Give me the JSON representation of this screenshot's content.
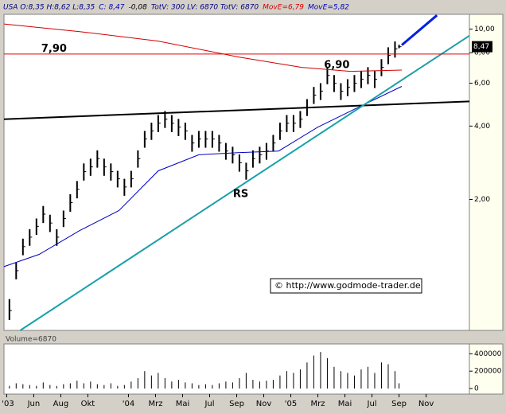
{
  "header": [
    {
      "text": "USA O:8,35 H:8,62 L:8,35",
      "color": "#000080"
    },
    {
      "text": "C: 8,47",
      "color": "#0000c0"
    },
    {
      "text": "-0,08",
      "color": "#000000"
    },
    {
      "text": "TotV: 300 LV: 6870 TotV: 6870",
      "color": "#000080"
    },
    {
      "text": "MovE=6,79",
      "color": "#d00000"
    },
    {
      "text": "MovE=5,82",
      "color": "#0000c0"
    }
  ],
  "chart_data": {
    "type": "ohlc",
    "scale": "log",
    "color": "#000000",
    "x": [
      3.2,
      3.7,
      4.2,
      4.7,
      5.2,
      5.7,
      6.2,
      6.7,
      7.2,
      7.7,
      8.2,
      8.7,
      9.2,
      9.7,
      10.2,
      10.7,
      11.2,
      11.7,
      12.2,
      12.7,
      13.2,
      13.7,
      14.2,
      14.7,
      15.2,
      15.7,
      16.2,
      16.7,
      17.2,
      17.7,
      18.2,
      18.7,
      19.2,
      19.7,
      20.2,
      20.7,
      21.2,
      21.7,
      22.2,
      22.7,
      23.2,
      23.7,
      24.2,
      24.7,
      25.2,
      25.7,
      26.2,
      26.7,
      27.2,
      27.7,
      28.2,
      28.7,
      29.2,
      29.7,
      30.2,
      30.7,
      31.2,
      31.7,
      32.0
    ],
    "high": [
      0.78,
      1.1,
      1.38,
      1.51,
      1.67,
      1.88,
      1.73,
      1.51,
      1.8,
      2.1,
      2.38,
      2.81,
      2.94,
      3.18,
      2.94,
      2.81,
      2.62,
      2.43,
      2.62,
      3.18,
      3.82,
      4.13,
      4.44,
      4.61,
      4.44,
      4.28,
      4.13,
      3.68,
      3.82,
      3.82,
      3.82,
      3.68,
      3.41,
      3.29,
      3.06,
      2.83,
      3.18,
      3.29,
      3.41,
      3.68,
      4.13,
      4.44,
      4.44,
      4.61,
      5.16,
      5.79,
      6.0,
      6.98,
      6.48,
      6.0,
      6.23,
      6.48,
      6.73,
      6.98,
      6.73,
      7.53,
      8.42,
      8.9,
      8.62
    ],
    "low": [
      0.64,
      0.94,
      1.18,
      1.29,
      1.43,
      1.6,
      1.47,
      1.29,
      1.54,
      1.78,
      2.02,
      2.39,
      2.5,
      2.7,
      2.5,
      2.39,
      2.24,
      2.07,
      2.24,
      2.7,
      3.26,
      3.51,
      3.78,
      3.93,
      3.78,
      3.64,
      3.51,
      3.14,
      3.26,
      3.26,
      3.26,
      3.14,
      2.91,
      2.81,
      2.6,
      2.41,
      2.7,
      2.81,
      2.91,
      3.14,
      3.51,
      3.78,
      3.78,
      3.93,
      4.4,
      4.93,
      5.12,
      5.94,
      5.52,
      5.12,
      5.31,
      5.52,
      5.73,
      5.94,
      5.73,
      6.41,
      7.18,
      7.64,
      8.35
    ],
    "close": [
      0.7,
      1.02,
      1.28,
      1.4,
      1.55,
      1.74,
      1.6,
      1.4,
      1.67,
      1.94,
      2.2,
      2.6,
      2.72,
      2.94,
      2.72,
      2.6,
      2.43,
      2.25,
      2.43,
      2.94,
      3.54,
      3.82,
      4.11,
      4.27,
      4.11,
      3.96,
      3.82,
      3.41,
      3.54,
      3.54,
      3.54,
      3.41,
      3.16,
      3.05,
      2.83,
      2.62,
      2.94,
      3.05,
      3.16,
      3.41,
      3.82,
      4.11,
      4.11,
      4.27,
      4.78,
      5.36,
      5.56,
      6.46,
      6.0,
      5.56,
      5.77,
      6.0,
      6.23,
      6.46,
      6.23,
      6.97,
      7.8,
      8.3,
      8.47
    ],
    "overlays": [
      {
        "color": "#d00000",
        "width": 1,
        "x": [
          2.8,
          8.4,
          14.2,
          20.1,
          24.8,
          28.4,
          32.2
        ],
        "values": [
          10.5,
          9.77,
          8.93,
          7.69,
          6.97,
          6.71,
          6.79
        ]
      },
      {
        "color": "#0000c0",
        "width": 1,
        "x": [
          2.8,
          5.4,
          8.4,
          11.3,
          14.2,
          17.2,
          20.1,
          23.1,
          26.0,
          29.0,
          32.2
        ],
        "values": [
          1.06,
          1.19,
          1.49,
          1.8,
          2.62,
          3.05,
          3.11,
          3.16,
          3.96,
          4.78,
          5.82
        ]
      },
      {
        "color": "#000000",
        "width": 2,
        "x": [
          2.8,
          37.2
        ],
        "values": [
          4.27,
          5.05
        ]
      },
      {
        "color": "#1aa0a8",
        "width": 2,
        "x": [
          4.0,
          37.2
        ],
        "values": [
          0.58,
          9.4
        ]
      },
      {
        "color": "#e00000",
        "width": 1,
        "x": [
          2.8,
          37.2
        ],
        "values": [
          7.9,
          7.9
        ]
      },
      {
        "color": "#0020e0",
        "width": 3,
        "x": [
          32.2,
          34.8
        ],
        "values": [
          8.6,
          11.4
        ]
      }
    ],
    "annotations": [
      {
        "text": "7,90",
        "x": 6.5,
        "y": 8.3
      },
      {
        "text": "6,90",
        "x": 27.4,
        "y": 7.1
      },
      {
        "text": "RS",
        "x": 20.3,
        "y": 2.1
      }
    ],
    "copyright": "© http://www.godmode-trader.de",
    "last_label": "8,47",
    "xlim": [
      2.8,
      37.2
    ],
    "ylim": [
      0.58,
      11.5
    ],
    "yticks": [
      {
        "value": 10,
        "label": "10,00"
      },
      {
        "value": 8,
        "label": "8,00"
      },
      {
        "value": 6,
        "label": "6,00"
      },
      {
        "value": 4,
        "label": "4,00"
      },
      {
        "value": 2,
        "label": "2,00"
      }
    ],
    "xticks": [
      {
        "value": 3,
        "label": "'03"
      },
      {
        "value": 5,
        "label": "Jun"
      },
      {
        "value": 7,
        "label": "Aug"
      },
      {
        "value": 9,
        "label": "Okt"
      },
      {
        "value": 12,
        "label": "'04"
      },
      {
        "value": 14,
        "label": "Mrz"
      },
      {
        "value": 16,
        "label": "Mai"
      },
      {
        "value": 18,
        "label": "Jul"
      },
      {
        "value": 20,
        "label": "Sep"
      },
      {
        "value": 22,
        "label": "Nov"
      },
      {
        "value": 24,
        "label": "'05"
      },
      {
        "value": 26,
        "label": "Mrz"
      },
      {
        "value": 28,
        "label": "Mai"
      },
      {
        "value": 30,
        "label": "Jul"
      },
      {
        "value": 32,
        "label": "Sep"
      },
      {
        "value": 34,
        "label": "Nov"
      }
    ],
    "volume": {
      "title": "Volume=6870",
      "color": "#000000",
      "ylim": [
        0,
        440000
      ],
      "yticks": [
        0,
        200000,
        400000
      ],
      "values": [
        30000,
        60000,
        50000,
        40000,
        30000,
        70000,
        40000,
        30000,
        50000,
        60000,
        90000,
        60000,
        80000,
        50000,
        40000,
        60000,
        30000,
        40000,
        80000,
        120000,
        200000,
        150000,
        180000,
        120000,
        80000,
        100000,
        70000,
        60000,
        40000,
        50000,
        40000,
        60000,
        80000,
        70000,
        120000,
        180000,
        100000,
        80000,
        90000,
        100000,
        150000,
        200000,
        180000,
        220000,
        300000,
        380000,
        420000,
        350000,
        250000,
        200000,
        180000,
        150000,
        220000,
        250000,
        180000,
        300000,
        280000,
        200000,
        60000
      ]
    }
  }
}
